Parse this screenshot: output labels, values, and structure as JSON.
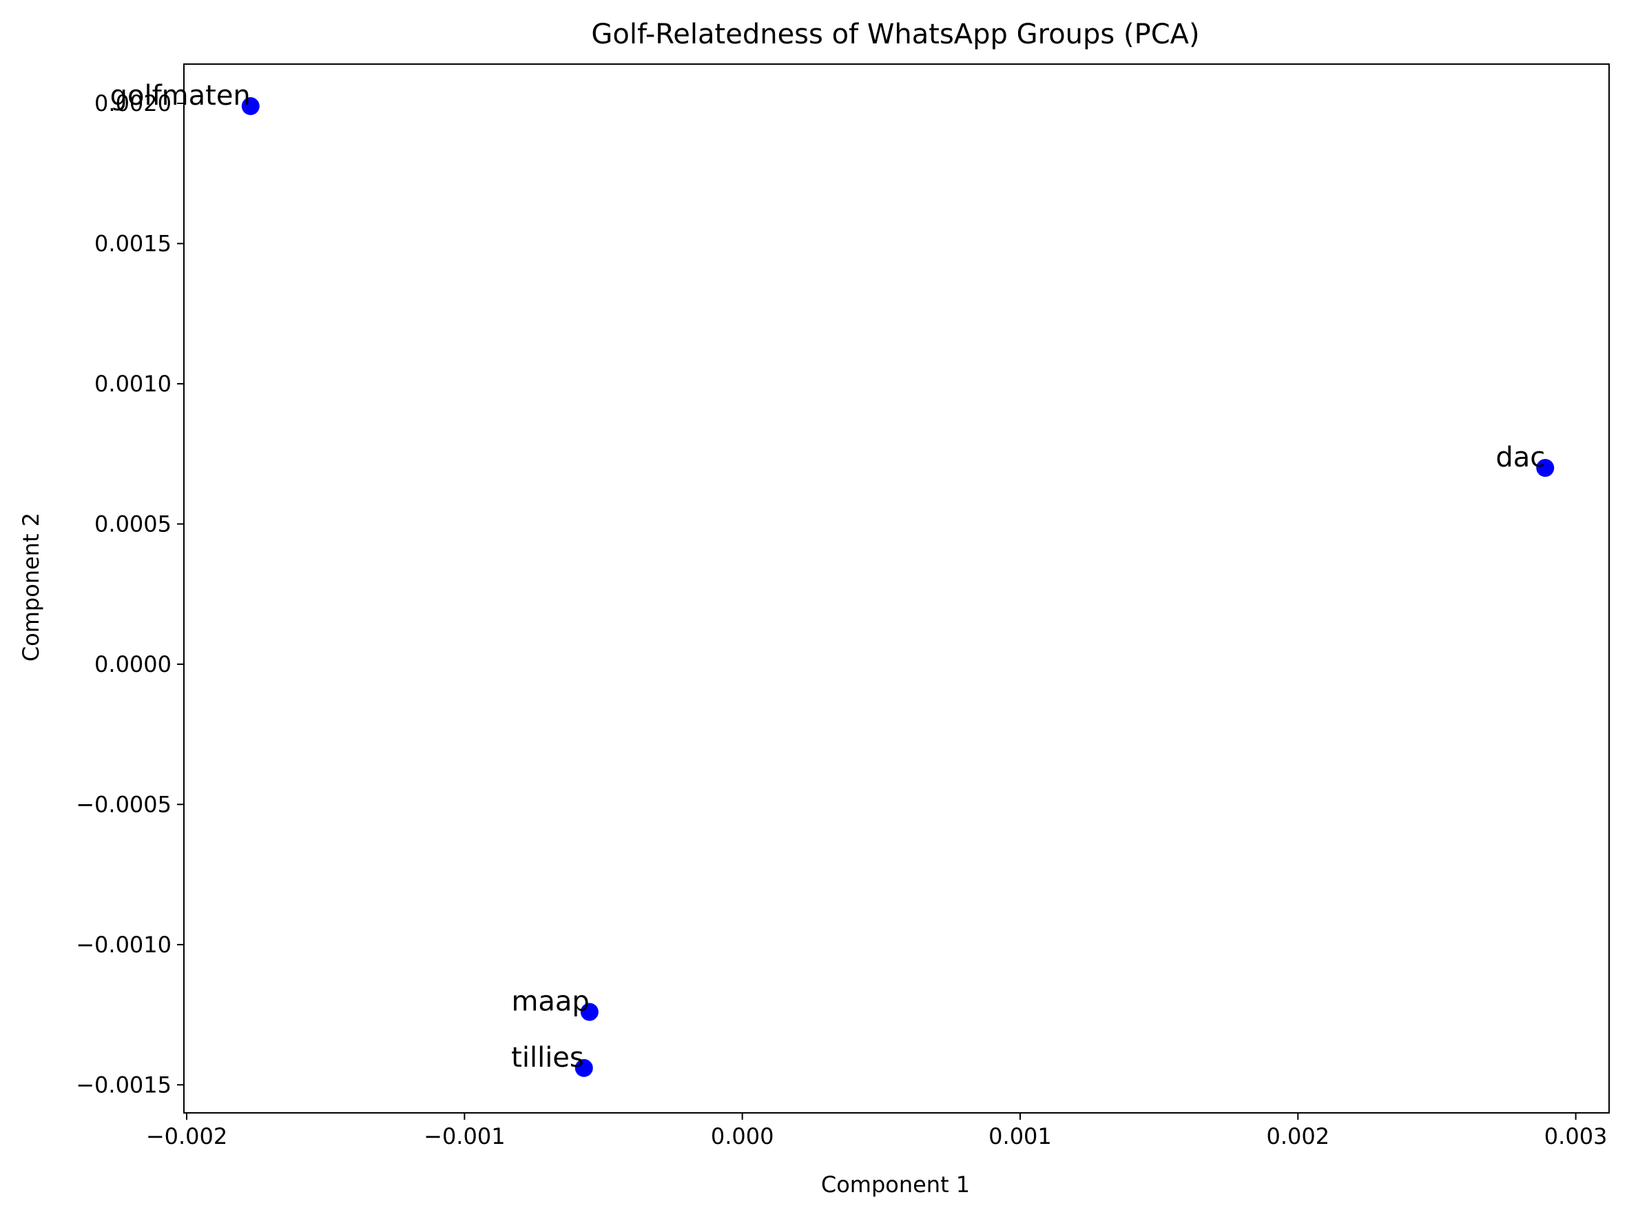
{
  "chart_data": {
    "type": "scatter",
    "title": "Golf-Relatedness of WhatsApp Groups (PCA)",
    "xlabel": "Component 1",
    "ylabel": "Component 2",
    "xlim": [
      -0.00201,
      0.00312
    ],
    "ylim": [
      -0.0016,
      0.00214
    ],
    "grid": false,
    "marker_color": "#0000ff",
    "xticks": [
      {
        "value": -0.002,
        "label": "−0.002"
      },
      {
        "value": -0.001,
        "label": "−0.001"
      },
      {
        "value": 0.0,
        "label": "0.000"
      },
      {
        "value": 0.001,
        "label": "0.001"
      },
      {
        "value": 0.002,
        "label": "0.002"
      },
      {
        "value": 0.003,
        "label": "0.003"
      }
    ],
    "yticks": [
      {
        "value": -0.0015,
        "label": "−0.0015"
      },
      {
        "value": -0.001,
        "label": "−0.0010"
      },
      {
        "value": -0.0005,
        "label": "−0.0005"
      },
      {
        "value": 0.0,
        "label": "0.0000"
      },
      {
        "value": 0.0005,
        "label": "0.0005"
      },
      {
        "value": 0.001,
        "label": "0.0010"
      },
      {
        "value": 0.0015,
        "label": "0.0015"
      },
      {
        "value": 0.002,
        "label": "0.0020"
      }
    ],
    "points": [
      {
        "name": "golfmaten",
        "x": -0.00177,
        "y": 0.00199
      },
      {
        "name": "dac",
        "x": 0.00289,
        "y": 0.0007
      },
      {
        "name": "maap",
        "x": -0.00055,
        "y": -0.00124
      },
      {
        "name": "tillies",
        "x": -0.00057,
        "y": -0.00144
      }
    ]
  }
}
